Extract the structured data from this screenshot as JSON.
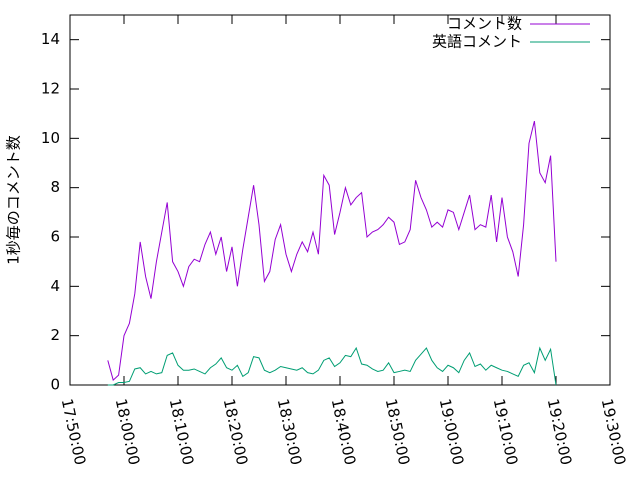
{
  "chart_data": {
    "type": "line",
    "ylabel": "1秒毎のコメント数",
    "x": [
      "17:57:00",
      "17:58:00",
      "17:59:00",
      "18:00:00",
      "18:01:00",
      "18:02:00",
      "18:03:00",
      "18:04:00",
      "18:05:00",
      "18:06:00",
      "18:07:00",
      "18:08:00",
      "18:09:00",
      "18:10:00",
      "18:11:00",
      "18:12:00",
      "18:13:00",
      "18:14:00",
      "18:15:00",
      "18:16:00",
      "18:17:00",
      "18:18:00",
      "18:19:00",
      "18:20:00",
      "18:21:00",
      "18:22:00",
      "18:23:00",
      "18:24:00",
      "18:25:00",
      "18:26:00",
      "18:27:00",
      "18:28:00",
      "18:29:00",
      "18:30:00",
      "18:31:00",
      "18:32:00",
      "18:33:00",
      "18:34:00",
      "18:35:00",
      "18:36:00",
      "18:37:00",
      "18:38:00",
      "18:39:00",
      "18:40:00",
      "18:41:00",
      "18:42:00",
      "18:43:00",
      "18:44:00",
      "18:45:00",
      "18:46:00",
      "18:47:00",
      "18:48:00",
      "18:49:00",
      "18:50:00",
      "18:51:00",
      "18:52:00",
      "18:53:00",
      "18:54:00",
      "18:55:00",
      "18:56:00",
      "18:57:00",
      "18:58:00",
      "18:59:00",
      "19:00:00",
      "19:01:00",
      "19:02:00",
      "19:03:00",
      "19:04:00",
      "19:05:00",
      "19:06:00",
      "19:07:00",
      "19:08:00",
      "19:09:00",
      "19:10:00",
      "19:11:00",
      "19:12:00",
      "19:13:00",
      "19:14:00",
      "19:15:00",
      "19:16:00",
      "19:17:00",
      "19:18:00",
      "19:19:00",
      "19:20:00"
    ],
    "series": [
      {
        "name": "コメント数",
        "color": "#9400d3",
        "values": [
          1.0,
          0.2,
          0.4,
          2.0,
          2.5,
          3.7,
          5.8,
          4.4,
          3.5,
          5.0,
          6.2,
          7.4,
          5.0,
          4.6,
          4.0,
          4.8,
          5.1,
          5.0,
          5.7,
          6.2,
          5.3,
          6.0,
          4.6,
          5.6,
          4.0,
          5.5,
          6.8,
          8.1,
          6.5,
          4.2,
          4.6,
          5.9,
          6.5,
          5.3,
          4.6,
          5.3,
          5.8,
          5.4,
          6.2,
          5.3,
          8.5,
          8.1,
          6.1,
          7.0,
          8.0,
          7.3,
          7.6,
          7.8,
          6.0,
          6.2,
          6.3,
          6.5,
          6.8,
          6.6,
          5.7,
          5.8,
          6.3,
          8.3,
          7.6,
          7.1,
          6.4,
          6.6,
          6.4,
          7.1,
          7.0,
          6.3,
          7.0,
          7.7,
          6.3,
          6.5,
          6.4,
          7.7,
          5.8,
          7.6,
          6.0,
          5.4,
          4.4,
          6.5,
          9.8,
          10.7,
          8.6,
          8.2,
          9.3,
          5.0
        ]
      },
      {
        "name": "英語コメント",
        "color": "#009e73",
        "values": [
          0.0,
          0.0,
          0.1,
          0.1,
          0.15,
          0.65,
          0.7,
          0.45,
          0.55,
          0.45,
          0.5,
          1.2,
          1.3,
          0.8,
          0.6,
          0.6,
          0.65,
          0.55,
          0.45,
          0.7,
          0.85,
          1.1,
          0.7,
          0.6,
          0.8,
          0.35,
          0.5,
          1.15,
          1.1,
          0.6,
          0.5,
          0.6,
          0.75,
          0.7,
          0.65,
          0.6,
          0.7,
          0.5,
          0.45,
          0.6,
          1.0,
          1.1,
          0.75,
          0.9,
          1.2,
          1.15,
          1.5,
          0.85,
          0.8,
          0.65,
          0.55,
          0.6,
          0.9,
          0.5,
          0.55,
          0.6,
          0.55,
          1.0,
          1.25,
          1.5,
          1.0,
          0.7,
          0.55,
          0.8,
          0.7,
          0.5,
          1.0,
          1.3,
          0.75,
          0.85,
          0.6,
          0.8,
          0.7,
          0.6,
          0.55,
          0.45,
          0.35,
          0.8,
          0.9,
          0.5,
          1.5,
          1.0,
          1.45,
          0.0
        ]
      }
    ],
    "xlim": [
      "17:50:00",
      "19:30:00"
    ],
    "xticks": [
      "17:50:00",
      "18:00:00",
      "18:10:00",
      "18:20:00",
      "18:30:00",
      "18:40:00",
      "18:50:00",
      "19:00:00",
      "19:10:00",
      "19:20:00",
      "19:30:00"
    ],
    "ylim": [
      0,
      15
    ],
    "yticks": [
      0,
      2,
      4,
      6,
      8,
      10,
      12,
      14
    ],
    "legend": "top-right"
  }
}
